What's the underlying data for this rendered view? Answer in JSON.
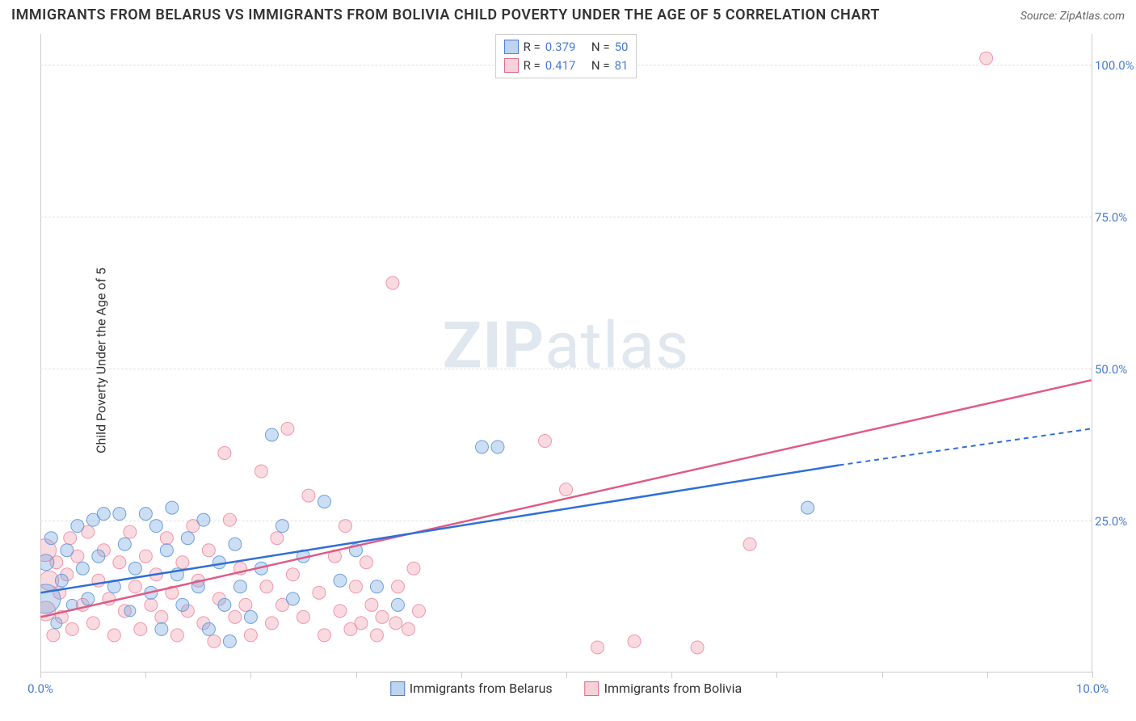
{
  "title": "IMMIGRANTS FROM BELARUS VS IMMIGRANTS FROM BOLIVIA CHILD POVERTY UNDER THE AGE OF 5 CORRELATION CHART",
  "source": "Source: ZipAtlas.com",
  "ylabel": "Child Poverty Under the Age of 5",
  "watermark_bold": "ZIP",
  "watermark_light": "atlas",
  "chart": {
    "type": "scatter",
    "xlim": [
      0,
      10
    ],
    "ylim": [
      0,
      105
    ],
    "xticks": [
      0,
      1,
      2,
      3,
      4,
      5,
      6,
      7,
      8,
      9,
      10
    ],
    "xtick_labels": {
      "0": "0.0%",
      "10": "10.0%"
    },
    "yticks": [
      25,
      50,
      75,
      100
    ],
    "ytick_labels": [
      "25.0%",
      "50.0%",
      "75.0%",
      "100.0%"
    ],
    "background_color": "#ffffff",
    "grid_color": "#e0e0e0",
    "axis_color": "#cccccc",
    "series": {
      "belarus": {
        "label": "Immigrants from Belarus",
        "color_fill": "rgba(108,160,220,0.35)",
        "color_stroke": "#6ca0dc",
        "line_color": "#2e6fd6",
        "r_value": "0.379",
        "n_value": "50",
        "trend": {
          "x1": 0,
          "y1": 13,
          "x2": 7.6,
          "y2": 34,
          "x2_dash": 10,
          "y2_dash": 40
        },
        "points": [
          {
            "x": 0.05,
            "y": 18,
            "r": 10
          },
          {
            "x": 0.05,
            "y": 12,
            "r": 18
          },
          {
            "x": 0.1,
            "y": 22,
            "r": 8
          },
          {
            "x": 0.15,
            "y": 8,
            "r": 7
          },
          {
            "x": 0.2,
            "y": 15,
            "r": 8
          },
          {
            "x": 0.25,
            "y": 20,
            "r": 8
          },
          {
            "x": 0.3,
            "y": 11,
            "r": 7
          },
          {
            "x": 0.35,
            "y": 24,
            "r": 8
          },
          {
            "x": 0.4,
            "y": 17,
            "r": 8
          },
          {
            "x": 0.45,
            "y": 12,
            "r": 8
          },
          {
            "x": 0.5,
            "y": 25,
            "r": 8
          },
          {
            "x": 0.55,
            "y": 19,
            "r": 8
          },
          {
            "x": 0.6,
            "y": 26,
            "r": 8
          },
          {
            "x": 0.7,
            "y": 14,
            "r": 8
          },
          {
            "x": 0.75,
            "y": 26,
            "r": 8
          },
          {
            "x": 0.8,
            "y": 21,
            "r": 8
          },
          {
            "x": 0.85,
            "y": 10,
            "r": 7
          },
          {
            "x": 0.9,
            "y": 17,
            "r": 8
          },
          {
            "x": 1.0,
            "y": 26,
            "r": 8
          },
          {
            "x": 1.05,
            "y": 13,
            "r": 8
          },
          {
            "x": 1.1,
            "y": 24,
            "r": 8
          },
          {
            "x": 1.15,
            "y": 7,
            "r": 8
          },
          {
            "x": 1.2,
            "y": 20,
            "r": 8
          },
          {
            "x": 1.25,
            "y": 27,
            "r": 8
          },
          {
            "x": 1.3,
            "y": 16,
            "r": 8
          },
          {
            "x": 1.35,
            "y": 11,
            "r": 8
          },
          {
            "x": 1.4,
            "y": 22,
            "r": 8
          },
          {
            "x": 1.5,
            "y": 14,
            "r": 8
          },
          {
            "x": 1.55,
            "y": 25,
            "r": 8
          },
          {
            "x": 1.6,
            "y": 7,
            "r": 8
          },
          {
            "x": 1.7,
            "y": 18,
            "r": 8
          },
          {
            "x": 1.75,
            "y": 11,
            "r": 8
          },
          {
            "x": 1.8,
            "y": 5,
            "r": 8
          },
          {
            "x": 1.85,
            "y": 21,
            "r": 8
          },
          {
            "x": 1.9,
            "y": 14,
            "r": 8
          },
          {
            "x": 2.0,
            "y": 9,
            "r": 8
          },
          {
            "x": 2.1,
            "y": 17,
            "r": 8
          },
          {
            "x": 2.2,
            "y": 39,
            "r": 8
          },
          {
            "x": 2.3,
            "y": 24,
            "r": 8
          },
          {
            "x": 2.4,
            "y": 12,
            "r": 8
          },
          {
            "x": 2.5,
            "y": 19,
            "r": 8
          },
          {
            "x": 2.7,
            "y": 28,
            "r": 8
          },
          {
            "x": 2.85,
            "y": 15,
            "r": 8
          },
          {
            "x": 3.0,
            "y": 20,
            "r": 8
          },
          {
            "x": 3.2,
            "y": 14,
            "r": 8
          },
          {
            "x": 3.4,
            "y": 11,
            "r": 8
          },
          {
            "x": 4.2,
            "y": 37,
            "r": 8
          },
          {
            "x": 4.35,
            "y": 37,
            "r": 8
          },
          {
            "x": 7.3,
            "y": 27,
            "r": 8
          }
        ]
      },
      "bolivia": {
        "label": "Immigrants from Bolivia",
        "color_fill": "rgba(240,150,170,0.35)",
        "color_stroke": "#f096aa",
        "line_color": "#e05a85",
        "r_value": "0.417",
        "n_value": "81",
        "trend": {
          "x1": 0,
          "y1": 9,
          "x2": 10,
          "y2": 48
        },
        "points": [
          {
            "x": 0.04,
            "y": 20,
            "r": 14
          },
          {
            "x": 0.05,
            "y": 10,
            "r": 12
          },
          {
            "x": 0.08,
            "y": 15,
            "r": 12
          },
          {
            "x": 0.12,
            "y": 6,
            "r": 8
          },
          {
            "x": 0.15,
            "y": 18,
            "r": 8
          },
          {
            "x": 0.18,
            "y": 13,
            "r": 8
          },
          {
            "x": 0.2,
            "y": 9,
            "r": 8
          },
          {
            "x": 0.25,
            "y": 16,
            "r": 8
          },
          {
            "x": 0.28,
            "y": 22,
            "r": 8
          },
          {
            "x": 0.3,
            "y": 7,
            "r": 8
          },
          {
            "x": 0.35,
            "y": 19,
            "r": 8
          },
          {
            "x": 0.4,
            "y": 11,
            "r": 8
          },
          {
            "x": 0.45,
            "y": 23,
            "r": 8
          },
          {
            "x": 0.5,
            "y": 8,
            "r": 8
          },
          {
            "x": 0.55,
            "y": 15,
            "r": 8
          },
          {
            "x": 0.6,
            "y": 20,
            "r": 8
          },
          {
            "x": 0.65,
            "y": 12,
            "r": 8
          },
          {
            "x": 0.7,
            "y": 6,
            "r": 8
          },
          {
            "x": 0.75,
            "y": 18,
            "r": 8
          },
          {
            "x": 0.8,
            "y": 10,
            "r": 8
          },
          {
            "x": 0.85,
            "y": 23,
            "r": 8
          },
          {
            "x": 0.9,
            "y": 14,
            "r": 8
          },
          {
            "x": 0.95,
            "y": 7,
            "r": 8
          },
          {
            "x": 1.0,
            "y": 19,
            "r": 8
          },
          {
            "x": 1.05,
            "y": 11,
            "r": 8
          },
          {
            "x": 1.1,
            "y": 16,
            "r": 8
          },
          {
            "x": 1.15,
            "y": 9,
            "r": 8
          },
          {
            "x": 1.2,
            "y": 22,
            "r": 8
          },
          {
            "x": 1.25,
            "y": 13,
            "r": 8
          },
          {
            "x": 1.3,
            "y": 6,
            "r": 8
          },
          {
            "x": 1.35,
            "y": 18,
            "r": 8
          },
          {
            "x": 1.4,
            "y": 10,
            "r": 8
          },
          {
            "x": 1.45,
            "y": 24,
            "r": 8
          },
          {
            "x": 1.5,
            "y": 15,
            "r": 8
          },
          {
            "x": 1.55,
            "y": 8,
            "r": 8
          },
          {
            "x": 1.6,
            "y": 20,
            "r": 8
          },
          {
            "x": 1.65,
            "y": 5,
            "r": 8
          },
          {
            "x": 1.7,
            "y": 12,
            "r": 8
          },
          {
            "x": 1.75,
            "y": 36,
            "r": 8
          },
          {
            "x": 1.8,
            "y": 25,
            "r": 8
          },
          {
            "x": 1.85,
            "y": 9,
            "r": 8
          },
          {
            "x": 1.9,
            "y": 17,
            "r": 8
          },
          {
            "x": 1.95,
            "y": 11,
            "r": 8
          },
          {
            "x": 2.0,
            "y": 6,
            "r": 8
          },
          {
            "x": 2.1,
            "y": 33,
            "r": 8
          },
          {
            "x": 2.15,
            "y": 14,
            "r": 8
          },
          {
            "x": 2.2,
            "y": 8,
            "r": 8
          },
          {
            "x": 2.25,
            "y": 22,
            "r": 8
          },
          {
            "x": 2.3,
            "y": 11,
            "r": 8
          },
          {
            "x": 2.35,
            "y": 40,
            "r": 8
          },
          {
            "x": 2.4,
            "y": 16,
            "r": 8
          },
          {
            "x": 2.5,
            "y": 9,
            "r": 8
          },
          {
            "x": 2.55,
            "y": 29,
            "r": 8
          },
          {
            "x": 2.65,
            "y": 13,
            "r": 8
          },
          {
            "x": 2.7,
            "y": 6,
            "r": 8
          },
          {
            "x": 2.8,
            "y": 19,
            "r": 8
          },
          {
            "x": 2.85,
            "y": 10,
            "r": 8
          },
          {
            "x": 2.9,
            "y": 24,
            "r": 8
          },
          {
            "x": 2.95,
            "y": 7,
            "r": 8
          },
          {
            "x": 3.0,
            "y": 14,
            "r": 8
          },
          {
            "x": 3.05,
            "y": 8,
            "r": 8
          },
          {
            "x": 3.1,
            "y": 18,
            "r": 8
          },
          {
            "x": 3.15,
            "y": 11,
            "r": 8
          },
          {
            "x": 3.2,
            "y": 6,
            "r": 8
          },
          {
            "x": 3.25,
            "y": 9,
            "r": 8
          },
          {
            "x": 3.35,
            "y": 64,
            "r": 8
          },
          {
            "x": 3.38,
            "y": 8,
            "r": 8
          },
          {
            "x": 3.4,
            "y": 14,
            "r": 8
          },
          {
            "x": 3.5,
            "y": 7,
            "r": 8
          },
          {
            "x": 3.55,
            "y": 17,
            "r": 8
          },
          {
            "x": 3.6,
            "y": 10,
            "r": 8
          },
          {
            "x": 4.8,
            "y": 38,
            "r": 8
          },
          {
            "x": 5.0,
            "y": 30,
            "r": 8
          },
          {
            "x": 5.3,
            "y": 4,
            "r": 8
          },
          {
            "x": 5.65,
            "y": 5,
            "r": 8
          },
          {
            "x": 6.25,
            "y": 4,
            "r": 8
          },
          {
            "x": 6.75,
            "y": 21,
            "r": 8
          },
          {
            "x": 9.0,
            "y": 101,
            "r": 8
          }
        ]
      }
    }
  },
  "legend_top": {
    "r_label": "R =",
    "n_label": "N ="
  }
}
